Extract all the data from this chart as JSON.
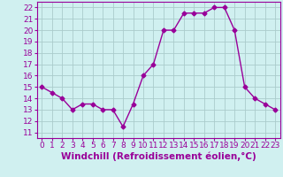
{
  "x": [
    0,
    1,
    2,
    3,
    4,
    5,
    6,
    7,
    8,
    9,
    10,
    11,
    12,
    13,
    14,
    15,
    16,
    17,
    18,
    19,
    20,
    21,
    22,
    23
  ],
  "y": [
    15.0,
    14.5,
    14.0,
    13.0,
    13.5,
    13.5,
    13.0,
    13.0,
    11.5,
    13.5,
    16.0,
    17.0,
    20.0,
    20.0,
    21.5,
    21.5,
    21.5,
    22.0,
    22.0,
    20.0,
    15.0,
    14.0,
    13.5,
    13.0
  ],
  "line_color": "#990099",
  "marker": "D",
  "marker_size": 2.5,
  "bg_color": "#d0f0f0",
  "grid_color": "#aacccc",
  "xlabel": "Windchill (Refroidissement éolien,°C)",
  "xlim": [
    -0.5,
    23.5
  ],
  "ylim": [
    10.5,
    22.5
  ],
  "xticks": [
    0,
    1,
    2,
    3,
    4,
    5,
    6,
    7,
    8,
    9,
    10,
    11,
    12,
    13,
    14,
    15,
    16,
    17,
    18,
    19,
    20,
    21,
    22,
    23
  ],
  "yticks": [
    11,
    12,
    13,
    14,
    15,
    16,
    17,
    18,
    19,
    20,
    21,
    22
  ],
  "tick_fontsize": 6.5,
  "xlabel_fontsize": 7.5
}
